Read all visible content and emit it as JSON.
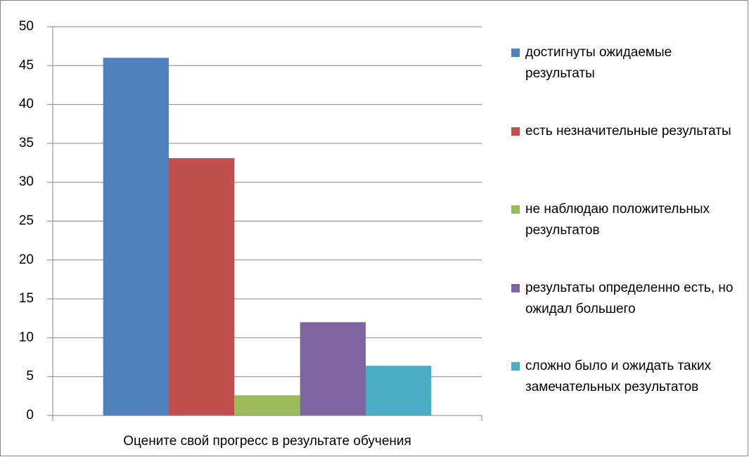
{
  "chart_data": {
    "type": "bar",
    "categories": [
      "Оцените свой прогресс в результате обучения"
    ],
    "series": [
      {
        "name": "достигнуты ожидаемые результаты",
        "color": "#4f81bd",
        "values": [
          46
        ]
      },
      {
        "name": "есть незначительные результаты",
        "color": "#c0504d",
        "values": [
          33.1
        ]
      },
      {
        "name": "не наблюдаю положительных результатов",
        "color": "#9bbb59",
        "values": [
          2.6
        ]
      },
      {
        "name": "результаты определенно есть, но ожидал большего",
        "color": "#8064a2",
        "values": [
          12
        ]
      },
      {
        "name": "сложно было и ожидать таких замечательных результатов",
        "color": "#4bacc6",
        "values": [
          6.4
        ]
      }
    ],
    "ylim": [
      0,
      50
    ],
    "yticks": [
      0,
      5,
      10,
      15,
      20,
      25,
      30,
      35,
      40,
      45,
      50
    ],
    "grid": true,
    "legend": "right"
  }
}
